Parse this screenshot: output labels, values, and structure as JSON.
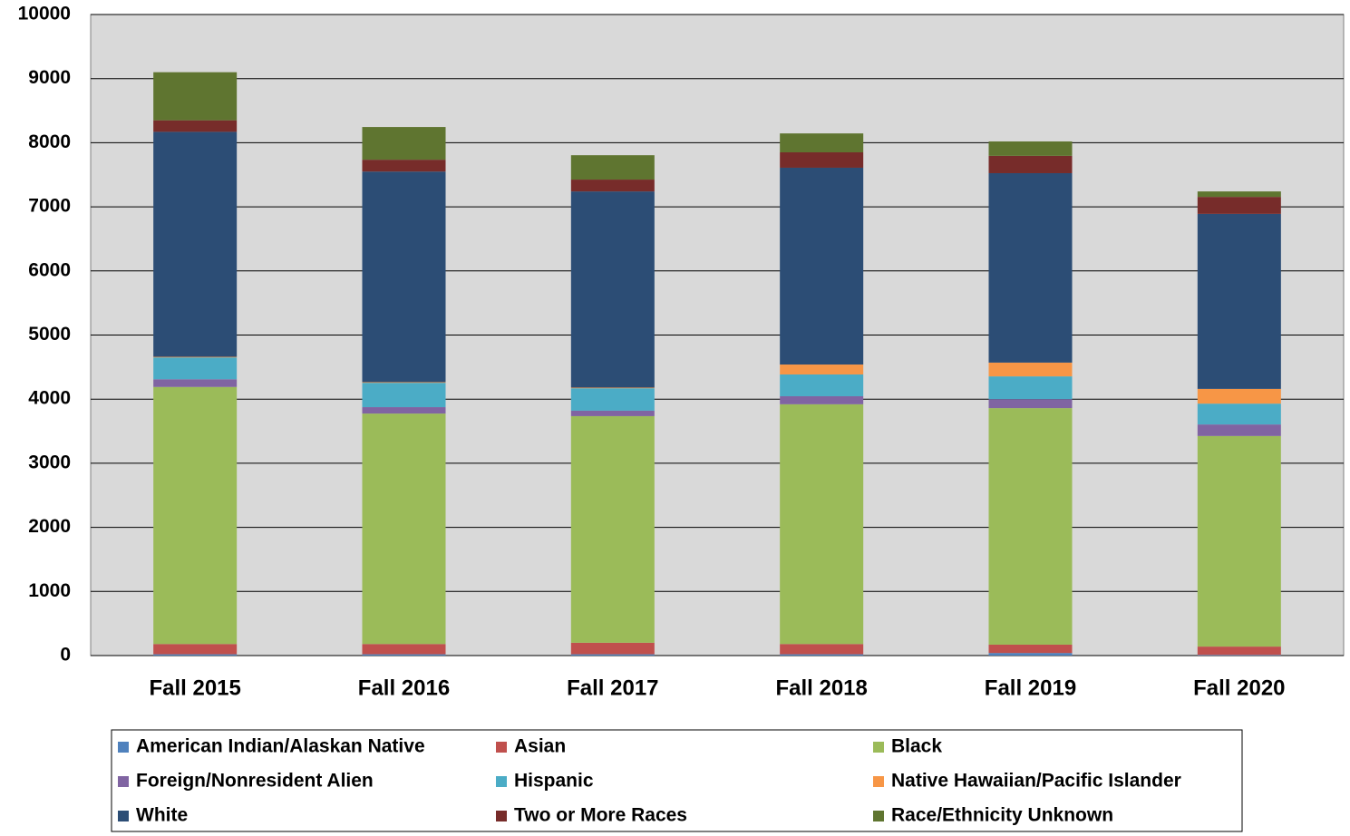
{
  "chart_data": {
    "type": "stacked_bar",
    "categories": [
      "Fall 2015",
      "Fall 2016",
      "Fall 2017",
      "Fall 2018",
      "Fall 2019",
      "Fall 2020"
    ],
    "series": [
      {
        "name": "American Indian/Alaskan Native",
        "color": "#4f81bd",
        "values": [
          20,
          20,
          20,
          20,
          40,
          10
        ]
      },
      {
        "name": "Asian",
        "color": "#c0504d",
        "values": [
          160,
          160,
          180,
          160,
          130,
          130
        ]
      },
      {
        "name": "Black",
        "color": "#9bbb59",
        "values": [
          4010,
          3595,
          3535,
          3740,
          3690,
          3285
        ]
      },
      {
        "name": "Foreign/Nonresident Alien",
        "color": "#8064a2",
        "values": [
          120,
          100,
          85,
          125,
          140,
          180
        ]
      },
      {
        "name": "Hispanic",
        "color": "#4bacc6",
        "values": [
          340,
          380,
          350,
          340,
          355,
          325
        ]
      },
      {
        "name": "Native Hawaiian/Pacific Islander",
        "color": "#f79646",
        "values": [
          10,
          10,
          10,
          155,
          215,
          230
        ]
      },
      {
        "name": "White",
        "color": "#2c4d75",
        "values": [
          3510,
          3285,
          3060,
          3070,
          2955,
          2730
        ]
      },
      {
        "name": "Two or More Races",
        "color": "#772c2a",
        "values": [
          180,
          185,
          185,
          240,
          270,
          265
        ]
      },
      {
        "name": "Race/Ethnicity Unknown",
        "color": "#5f7530",
        "values": [
          750,
          510,
          380,
          295,
          225,
          85
        ]
      }
    ],
    "ylim": [
      0,
      10000
    ],
    "yticks": [
      0,
      1000,
      2000,
      3000,
      4000,
      5000,
      6000,
      7000,
      8000,
      9000,
      10000
    ],
    "grid": true
  }
}
